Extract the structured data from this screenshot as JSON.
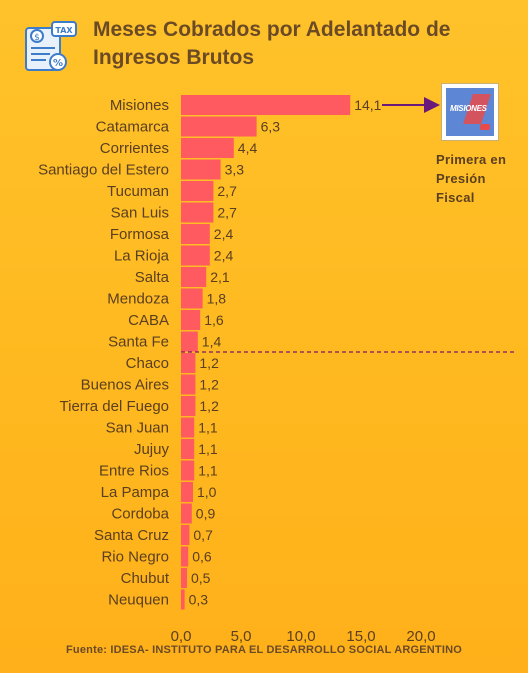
{
  "title": "Meses Cobrados por Adelantado de Ingresos Brutos",
  "icon_name": "tax-document-icon",
  "icon_label": "TAX",
  "logo": {
    "name": "misiones-logo",
    "text": "MISIONES"
  },
  "annotation": "Primera  en Presión Fiscal",
  "source": "Fuente: IDESA- INSTITUTO PARA EL DESARROLLO SOCIAL ARGENTINO",
  "colors": {
    "bar": "#ff5a5f",
    "text": "#5a3f20",
    "arrow": "#6a1a7a",
    "divider": "#7a1a6a"
  },
  "chart_data": {
    "type": "bar",
    "orientation": "horizontal",
    "categories": [
      "Misiones",
      "Catamarca",
      "Corrientes",
      "Santiago del Estero",
      "Tucuman",
      "San Luis",
      "Formosa",
      "La Rioja",
      "Salta",
      "Mendoza",
      "CABA",
      "Santa Fe",
      "Chaco",
      "Buenos Aires",
      "Tierra del Fuego",
      "San Juan",
      "Jujuy",
      "Entre Rios",
      "La Pampa",
      "Cordoba",
      "Santa Cruz",
      "Rio Negro",
      "Chubut",
      "Neuquen"
    ],
    "values": [
      14.1,
      6.3,
      4.4,
      3.3,
      2.7,
      2.7,
      2.4,
      2.4,
      2.1,
      1.8,
      1.6,
      1.4,
      1.2,
      1.2,
      1.2,
      1.1,
      1.1,
      1.1,
      1.0,
      0.9,
      0.7,
      0.6,
      0.5,
      0.3
    ],
    "value_labels": [
      "14,1",
      "6,3",
      "4,4",
      "3,3",
      "2,7",
      "2,7",
      "2,4",
      "2,4",
      "2,1",
      "1,8",
      "1,6",
      "1,4",
      "1,2",
      "1,2",
      "1,2",
      "1,1",
      "1,1",
      "1,1",
      "1,0",
      "0,9",
      "0,7",
      "0,6",
      "0,5",
      "0,3"
    ],
    "x_ticks": [
      "0,0",
      "5,0",
      "10,0",
      "15,0",
      "20,0"
    ],
    "xlim": [
      0,
      20
    ],
    "grid": false,
    "legend": "none",
    "reference_line": "dashed line between Santa Fe and Chaco"
  }
}
